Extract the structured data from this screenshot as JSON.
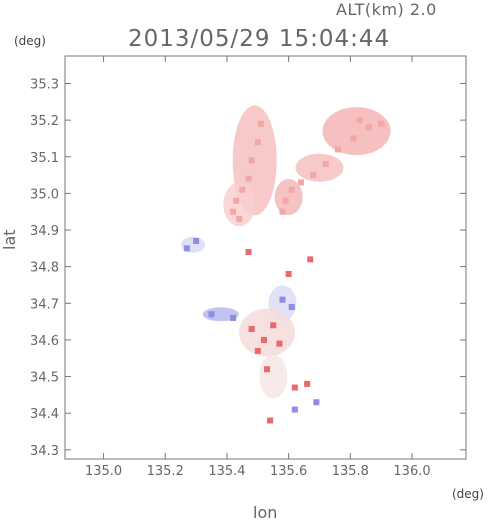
{
  "alt_label": "ALT(km) 2.0",
  "timestamp": "2013/05/29 15:04:44",
  "y_unit": "(deg)",
  "x_unit": "(deg)",
  "chart_data": {
    "type": "scatter",
    "title": "2013/05/29 15:04:44",
    "subtitle": "ALT(km) 2.0",
    "xlabel": "lon",
    "ylabel": "lat",
    "xlim": [
      134.875,
      136.175
    ],
    "ylim": [
      34.275,
      35.375
    ],
    "xticks": [
      "135.0",
      "135.2",
      "135.4",
      "135.6",
      "135.8",
      "136.0"
    ],
    "yticks": [
      "34.3",
      "34.4",
      "34.5",
      "34.6",
      "34.7",
      "34.8",
      "34.9",
      "35.0",
      "35.1",
      "35.2",
      "35.3"
    ],
    "grid": false,
    "series": [
      {
        "color": "#f2a6a6",
        "values": [
          {
            "x": 135.51,
            "y": 35.19
          },
          {
            "x": 135.5,
            "y": 35.14
          },
          {
            "x": 135.48,
            "y": 35.09
          },
          {
            "x": 135.47,
            "y": 35.04
          },
          {
            "x": 135.45,
            "y": 35.01
          },
          {
            "x": 135.43,
            "y": 34.98
          },
          {
            "x": 135.42,
            "y": 34.95
          },
          {
            "x": 135.44,
            "y": 34.93
          },
          {
            "x": 135.83,
            "y": 35.2
          },
          {
            "x": 135.86,
            "y": 35.18
          },
          {
            "x": 135.9,
            "y": 35.19
          },
          {
            "x": 135.81,
            "y": 35.15
          },
          {
            "x": 135.76,
            "y": 35.12
          },
          {
            "x": 135.72,
            "y": 35.08
          },
          {
            "x": 135.68,
            "y": 35.05
          },
          {
            "x": 135.64,
            "y": 35.03
          },
          {
            "x": 135.61,
            "y": 35.01
          },
          {
            "x": 135.59,
            "y": 34.98
          },
          {
            "x": 135.58,
            "y": 34.95
          }
        ]
      },
      {
        "color": "#8d8de8",
        "values": [
          {
            "x": 135.3,
            "y": 34.87
          },
          {
            "x": 135.27,
            "y": 34.85
          },
          {
            "x": 135.35,
            "y": 34.67
          },
          {
            "x": 135.42,
            "y": 34.66
          },
          {
            "x": 135.58,
            "y": 34.71
          },
          {
            "x": 135.61,
            "y": 34.69
          },
          {
            "x": 135.69,
            "y": 34.43
          },
          {
            "x": 135.62,
            "y": 34.41
          }
        ]
      },
      {
        "color": "#e86a6a",
        "values": [
          {
            "x": 135.48,
            "y": 34.63
          },
          {
            "x": 135.52,
            "y": 34.6
          },
          {
            "x": 135.55,
            "y": 34.64
          },
          {
            "x": 135.5,
            "y": 34.57
          },
          {
            "x": 135.57,
            "y": 34.59
          },
          {
            "x": 135.53,
            "y": 34.52
          },
          {
            "x": 135.66,
            "y": 34.48
          },
          {
            "x": 135.62,
            "y": 34.47
          },
          {
            "x": 135.67,
            "y": 34.82
          },
          {
            "x": 135.6,
            "y": 34.78
          },
          {
            "x": 135.47,
            "y": 34.84
          },
          {
            "x": 135.54,
            "y": 34.38
          }
        ]
      }
    ]
  }
}
